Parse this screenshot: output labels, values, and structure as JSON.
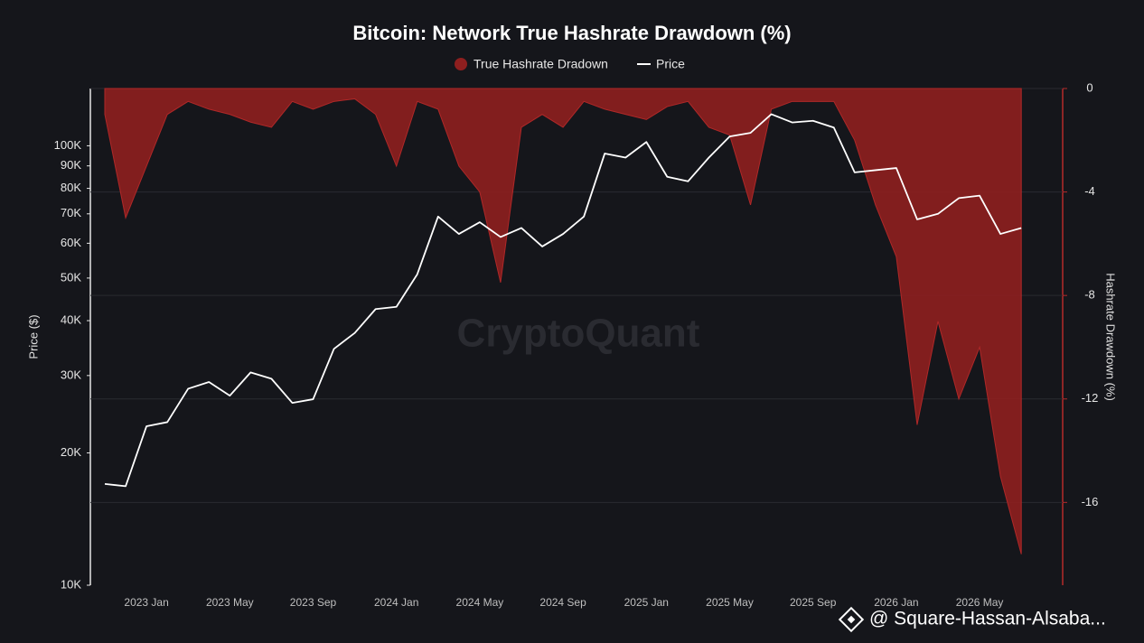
{
  "chart_data": {
    "type": "line",
    "title": "Bitcoin: Network True Hashrate Drawdown (%)",
    "y_label": "Price ($)",
    "y2_label": "Hashrate Drawdown (%)",
    "watermark": "CryptoQuant",
    "footer": "@ Square-Hassan-Alsaba...",
    "categories": [
      null,
      null,
      "2023 Jan",
      null,
      null,
      null,
      "2023 May",
      null,
      null,
      null,
      "2023 Sep",
      null,
      null,
      null,
      "2024 Jan",
      null,
      null,
      null,
      "2024 May",
      null,
      null,
      null,
      "2024 Sep",
      null,
      null,
      null,
      "2025 Jan",
      null,
      null,
      null,
      "2025 May",
      null,
      null,
      null,
      "2025 Sep",
      null,
      null,
      null,
      "2026 Jan",
      null,
      null,
      null,
      "2026 May",
      null,
      null
    ],
    "series": [
      {
        "name": "True Hashrate Dradown",
        "type": "area",
        "axis": "y2",
        "color": "#8e1f1f",
        "values": [
          -1,
          -5,
          -3,
          -1,
          -0.5,
          -0.8,
          -1,
          -1.3,
          -1.5,
          -0.5,
          -0.8,
          -0.5,
          -0.4,
          -1,
          -3,
          -0.5,
          -0.8,
          -3,
          -4,
          -7.5,
          -1.5,
          -1,
          -1.5,
          -0.5,
          -0.8,
          -1,
          -1.2,
          -0.7,
          -0.5,
          -1.5,
          -1.8,
          -4.5,
          -0.8,
          -0.5,
          -0.5,
          -0.5,
          -2,
          -4.5,
          -6.5,
          -13,
          -9,
          -12,
          -10,
          -15,
          -18
        ]
      },
      {
        "name": "Price",
        "type": "line",
        "axis": "y",
        "color": "#ffffff",
        "values": [
          17000,
          16800,
          23000,
          23500,
          28000,
          29000,
          27000,
          30500,
          29500,
          26000,
          26500,
          34500,
          37500,
          42500,
          43000,
          51000,
          69000,
          63000,
          67000,
          62000,
          65000,
          59000,
          63000,
          69000,
          96000,
          94000,
          102000,
          85000,
          83000,
          94000,
          105000,
          107000,
          118000,
          113000,
          114000,
          110000,
          87000,
          88000,
          89000,
          68000,
          70000,
          76000,
          77000,
          63000,
          65000
        ]
      }
    ],
    "ylim": [
      10000,
      135000
    ],
    "y_scale": "log",
    "yticks": [
      {
        "value": 10000,
        "label": "10K"
      },
      {
        "value": 20000,
        "label": "20K"
      },
      {
        "value": 30000,
        "label": "30K"
      },
      {
        "value": 40000,
        "label": "40K"
      },
      {
        "value": 50000,
        "label": "50K"
      },
      {
        "value": 60000,
        "label": "60K"
      },
      {
        "value": 70000,
        "label": "70K"
      },
      {
        "value": 80000,
        "label": "80K"
      },
      {
        "value": 90000,
        "label": "90K"
      },
      {
        "value": 100000,
        "label": "100K"
      }
    ],
    "y2lim": [
      -19.2,
      0
    ],
    "y2ticks": [
      0,
      -4,
      -8,
      -12,
      -16
    ],
    "grid": true
  }
}
